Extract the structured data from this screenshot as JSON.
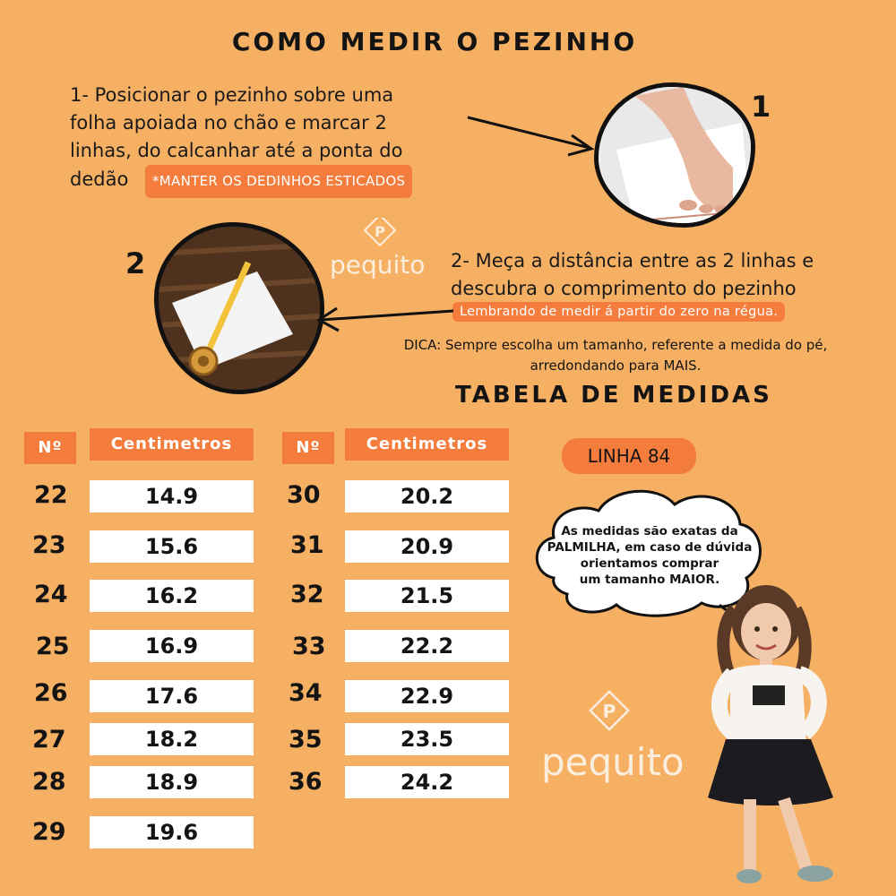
{
  "title": "COMO MEDIR O PEZINHO",
  "step1": {
    "lines": [
      "1- Posicionar o pezinho sobre uma",
      "folha apoiada no chão e marcar 2",
      "linhas, do calcanhar até a ponta do",
      "dedão"
    ],
    "badge": "*MANTER OS DEDINHOS ESTICADOS",
    "number": "1"
  },
  "step2": {
    "lines": [
      "2- Meça a distância entre as 2 linhas e",
      "descubra o comprimento do pezinho"
    ],
    "badge": "Lembrando de medir á partir do zero na régua.",
    "number": "2"
  },
  "tip": {
    "line1": "DICA: Sempre escolha um tamanho, referente a medida do pé,",
    "line2": "arredondando para MAIS."
  },
  "table_title": "TABELA DE MEDIDAS",
  "headers": {
    "no": "Nº",
    "cm": "Centimetros"
  },
  "left_rows": [
    {
      "no": "22",
      "cm": "14.9"
    },
    {
      "no": "23",
      "cm": "15.6"
    },
    {
      "no": "24",
      "cm": "16.2"
    },
    {
      "no": "25",
      "cm": "16.9"
    },
    {
      "no": "26",
      "cm": "17.6"
    },
    {
      "no": "27",
      "cm": "18.2"
    },
    {
      "no": "28",
      "cm": "18.9"
    },
    {
      "no": "29",
      "cm": "19.6"
    }
  ],
  "right_rows": [
    {
      "no": "30",
      "cm": "20.2"
    },
    {
      "no": "31",
      "cm": "20.9"
    },
    {
      "no": "32",
      "cm": "21.5"
    },
    {
      "no": "33",
      "cm": "22.2"
    },
    {
      "no": "34",
      "cm": "22.9"
    },
    {
      "no": "35",
      "cm": "23.5"
    },
    {
      "no": "36",
      "cm": "24.2"
    }
  ],
  "line_badge": "LINHA 84",
  "cloud": {
    "lines": [
      "As medidas são exatas da",
      "PALMILHA, em caso de dúvida",
      "orientamos comprar",
      "um tamanho MAIOR."
    ]
  },
  "logo_text": "pequito",
  "logo_letter": "P",
  "colors": {
    "background": "#f6b063",
    "accent": "#f47c3c",
    "text": "#141414"
  }
}
